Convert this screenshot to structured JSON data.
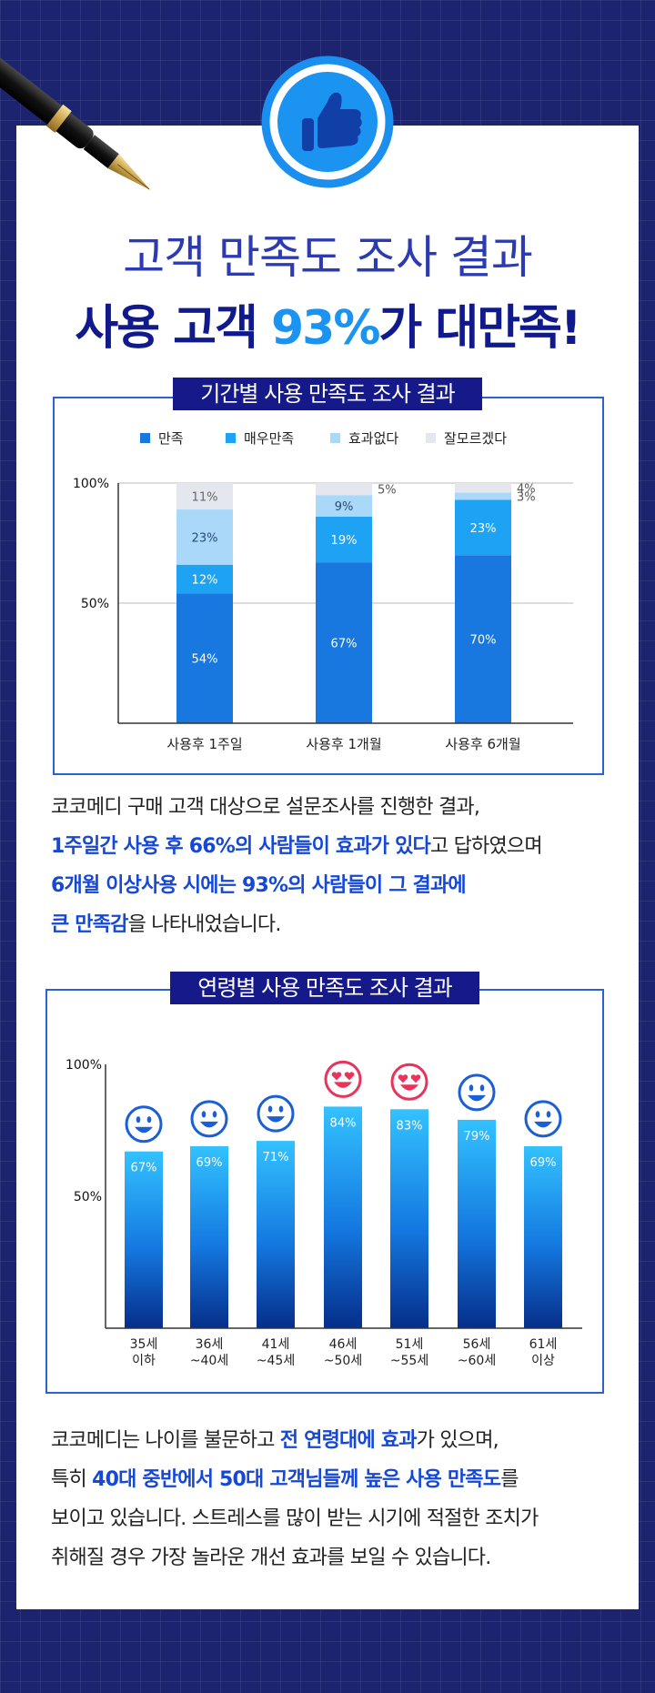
{
  "header": {
    "title_line1": "고객 만족도 조사 결과",
    "title_line2_pre": "사용 고객 ",
    "title_line2_highlight": "93%",
    "title_line2_post": "가 대만족!"
  },
  "colors": {
    "satisfied": "#1878e0",
    "very_satisfied": "#1ea2f4",
    "no_effect": "#a9d8f8",
    "unknown": "#e4e8ee",
    "navy": "#16198a",
    "accent_blue": "#1548d6"
  },
  "period_section": {
    "title": "기간별 사용 만족도 조사 결과",
    "legend": [
      "만족",
      "매우만족",
      "효과없다",
      "잘모르겠다"
    ],
    "y_ticks": [
      "100%",
      "50%"
    ],
    "description": [
      {
        "segments": [
          {
            "text": "코코메디 구매 고객 대상으로 설문조사를 진행한 결과,",
            "hl": false
          }
        ]
      },
      {
        "segments": [
          {
            "text": "1주일간 사용 후 66%의 사람들이 효과가 있다",
            "hl": true
          },
          {
            "text": "고 답하였으며",
            "hl": false
          }
        ]
      },
      {
        "segments": [
          {
            "text": " 6개월 이상사용 시에는  93%의 사람들이 그 결과에",
            "hl": true
          }
        ]
      },
      {
        "segments": [
          {
            "text": "큰 만족감",
            "hl": true
          },
          {
            "text": "을 나타내었습니다.",
            "hl": false
          }
        ]
      }
    ]
  },
  "chart_data": [
    {
      "type": "bar",
      "stacked": true,
      "title": "기간별 사용 만족도 조사 결과",
      "categories": [
        "사용후 1주일",
        "사용후 1개월",
        "사용후 6개월"
      ],
      "series": [
        {
          "name": "만족",
          "values": [
            54,
            67,
            70
          ],
          "labels": [
            "54%",
            "67%",
            "70%"
          ]
        },
        {
          "name": "매우만족",
          "values": [
            12,
            19,
            23
          ],
          "labels": [
            "12%",
            "19%",
            "23%"
          ]
        },
        {
          "name": "효과없다",
          "values": [
            23,
            9,
            3
          ],
          "labels": [
            "23%",
            "9%",
            "3%"
          ]
        },
        {
          "name": "잘모르겠다",
          "values": [
            11,
            5,
            4
          ],
          "labels": [
            "11%",
            "5%",
            "4%"
          ]
        }
      ],
      "ylim": [
        0,
        100
      ],
      "legend": "top"
    },
    {
      "type": "bar",
      "title": "연령별 사용 만족도 조사 결과",
      "categories": [
        "35세\n이하",
        "36세\n~40세",
        "41세\n~45세",
        "46세\n~50세",
        "51세\n~55세",
        "56세\n~60세",
        "61세\n이상"
      ],
      "category_lines": [
        [
          "35세",
          "이하"
        ],
        [
          "36세",
          "~40세"
        ],
        [
          "41세",
          "~45세"
        ],
        [
          "46세",
          "~50세"
        ],
        [
          "51세",
          "~55세"
        ],
        [
          "56세",
          "~60세"
        ],
        [
          "61세",
          "이상"
        ]
      ],
      "values": [
        67,
        69,
        71,
        84,
        83,
        79,
        69
      ],
      "labels": [
        "67%",
        "69%",
        "71%",
        "84%",
        "83%",
        "79%",
        "69%"
      ],
      "faces": [
        "smile",
        "smile",
        "smile",
        "love",
        "love",
        "smile",
        "smile"
      ],
      "y_ticks": [
        "100%",
        "50%"
      ],
      "ylim": [
        0,
        100
      ]
    }
  ],
  "age_section": {
    "title": "연령별 사용 만족도 조사 결과",
    "description": [
      {
        "segments": [
          {
            "text": "코코메디는 나이를 불문하고 ",
            "hl": false
          },
          {
            "text": "전 연령대에 효과",
            "hl": true
          },
          {
            "text": "가 있으며,",
            "hl": false
          }
        ]
      },
      {
        "segments": [
          {
            "text": "특히 ",
            "hl": false
          },
          {
            "text": "40대 중반에서 50대 고객님들께 높은 사용 만족도",
            "hl": true
          },
          {
            "text": "를",
            "hl": false
          }
        ]
      },
      {
        "segments": [
          {
            "text": "보이고 있습니다. 스트레스를 많이 받는 시기에 적절한 조치가",
            "hl": false
          }
        ]
      },
      {
        "segments": [
          {
            "text": "취해질 경우 가장 놀라운 개선 효과를 보일 수 있습니다.",
            "hl": false
          }
        ]
      }
    ]
  }
}
